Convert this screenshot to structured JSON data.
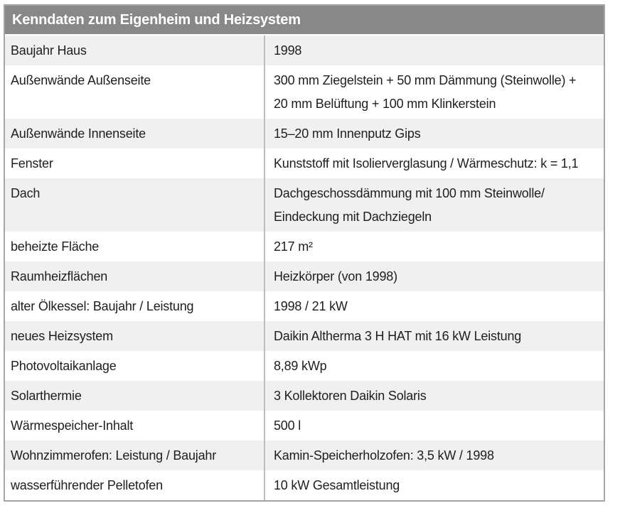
{
  "table": {
    "title": "Kenndaten zum Eigenheim und Heizsystem",
    "rows": [
      {
        "label": "Baujahr Haus",
        "value": "1998"
      },
      {
        "label": "Außenwände Außenseite",
        "value": "300 mm Ziegelstein + 50 mm Dämmung (Steinwolle) +\n20 mm Belüftung + 100 mm Klinkerstein"
      },
      {
        "label": "Außenwände Innenseite",
        "value": "15–20 mm Innenputz Gips"
      },
      {
        "label": "Fenster",
        "value": "Kunststoff mit Isolierverglasung / Wärmeschutz: k = 1,1"
      },
      {
        "label": "Dach",
        "value": "Dachgeschossdämmung mit 100 mm Steinwolle/\nEindeckung mit Dachziegeln"
      },
      {
        "label": "beheizte Fläche",
        "value": "217 m²"
      },
      {
        "label": "Raumheizflächen",
        "value": "Heizkörper (von 1998)"
      },
      {
        "label": "alter Ölkessel: Baujahr / Leistung",
        "value": "1998 / 21 kW"
      },
      {
        "label": "neues Heizsystem",
        "value": "Daikin Altherma 3 H HAT mit 16 kW Leistung"
      },
      {
        "label": "Photovoltaikanlage",
        "value": "8,89 kWp"
      },
      {
        "label": "Solarthermie",
        "value": "3 Kollektoren Daikin Solaris"
      },
      {
        "label": "Wärmespeicher-Inhalt",
        "value": "500 l"
      },
      {
        "label": "Wohnzimmerofen: Leistung / Baujahr",
        "value": "Kamin-Speicherholzofen: 3,5 kW / 1998"
      },
      {
        "label": "wasserführender Pelletofen",
        "value": "10 kW Gesamtleistung"
      }
    ]
  },
  "colors": {
    "header_bg": "#888888",
    "header_text": "#ffffff",
    "row_bg": "#ffffff",
    "row_alt_bg": "#eff0ef",
    "border": "#a6a6a6",
    "divider": "#bcbcbc",
    "text": "#1e1e1e"
  }
}
